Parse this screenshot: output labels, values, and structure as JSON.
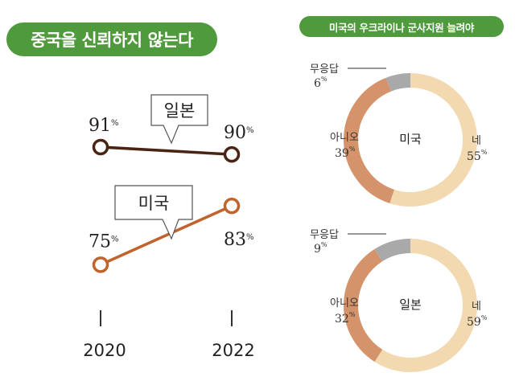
{
  "chart_data": [
    {
      "type": "line",
      "title": "중국을 신뢰하지 않는다",
      "x": [
        "2020",
        "2022"
      ],
      "unit": "%",
      "series": [
        {
          "name": "일본",
          "values": [
            91,
            90
          ],
          "color": "#4a2413"
        },
        {
          "name": "미국",
          "values": [
            75,
            83
          ],
          "color": "#c0632c"
        }
      ]
    },
    {
      "type": "pie",
      "title": "미국의 우크라이나 군사지원 늘려야",
      "unit": "%",
      "donuts": [
        {
          "center_label": "미국",
          "slices": [
            {
              "label": "네",
              "value": 55,
              "color": "#f2d9b0"
            },
            {
              "label": "아니오",
              "value": 39,
              "color": "#d4936a"
            },
            {
              "label": "무응답",
              "value": 6,
              "color": "#a9a9a9"
            }
          ]
        },
        {
          "center_label": "일본",
          "slices": [
            {
              "label": "네",
              "value": 59,
              "color": "#f2d9b0"
            },
            {
              "label": "아니오",
              "value": 32,
              "color": "#d4936a"
            },
            {
              "label": "무응답",
              "value": 9,
              "color": "#a9a9a9"
            }
          ]
        }
      ]
    }
  ]
}
